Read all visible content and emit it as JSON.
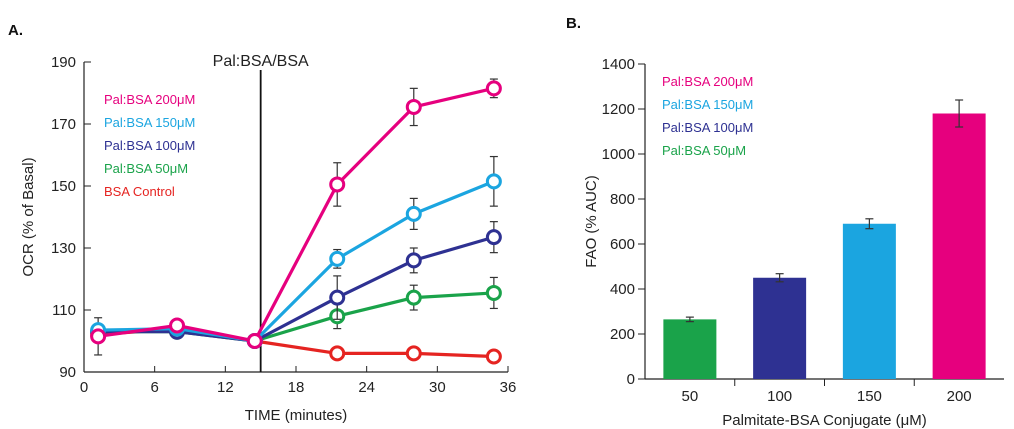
{
  "panels": {
    "a_label": "A.",
    "b_label": "B."
  },
  "chart_data": [
    {
      "type": "line",
      "panel": "A.",
      "xlabel": "TIME (minutes)",
      "ylabel": "OCR (% of Basal)",
      "xlim": [
        0,
        36
      ],
      "ylim": [
        90,
        190
      ],
      "xticks": [
        0,
        6,
        12,
        18,
        24,
        30,
        36
      ],
      "yticks": [
        90,
        110,
        130,
        150,
        170,
        190
      ],
      "annotation": {
        "label": "Pal:BSA/BSA",
        "x": 15
      },
      "legend_position": "top-left",
      "x": [
        1.2,
        7.9,
        14.5,
        21.5,
        28,
        34.8
      ],
      "series": [
        {
          "name": "Pal:BSA 200μM",
          "color": "#e6007e",
          "values": [
            101.5,
            105,
            100,
            150.5,
            175.5,
            181.5
          ],
          "err": [
            0,
            0,
            0,
            7,
            6,
            3
          ]
        },
        {
          "name": "Pal:BSA 150μM",
          "color": "#1ba5e0",
          "values": [
            103.5,
            104,
            100,
            126.5,
            141,
            151.5
          ],
          "err": [
            0,
            0,
            0,
            3,
            5,
            8
          ]
        },
        {
          "name": "Pal:BSA 100μM",
          "color": "#2e3192",
          "values": [
            103,
            103,
            100,
            114,
            126,
            133.5
          ],
          "err": [
            0,
            0,
            0,
            7,
            4,
            5
          ]
        },
        {
          "name": "Pal:BSA 50μM",
          "color": "#1aa34a",
          "values": [
            103,
            103,
            100,
            108,
            114,
            115.5
          ],
          "err": [
            0,
            0,
            0,
            4,
            4,
            5
          ]
        },
        {
          "name": "BSA Control",
          "color": "#e52421",
          "values": [
            102,
            104,
            100,
            96,
            96,
            95
          ],
          "err": [
            0,
            0,
            0,
            0,
            0,
            2
          ]
        }
      ],
      "extra_err": [
        {
          "x": 1.2,
          "y": 101.5,
          "err": 6
        }
      ]
    },
    {
      "type": "bar",
      "panel": "B.",
      "xlabel": "Palmitate-BSA Conjugate (μM)",
      "ylabel": "FAO (% AUC)",
      "ylim": [
        0,
        1400
      ],
      "yticks": [
        0,
        200,
        400,
        600,
        800,
        1000,
        1200,
        1400
      ],
      "categories": [
        "50",
        "100",
        "150",
        "200"
      ],
      "values": [
        265,
        450,
        690,
        1180
      ],
      "err": [
        10,
        18,
        22,
        60
      ],
      "colors": [
        "#1aa34a",
        "#2e3192",
        "#1ba5e0",
        "#e6007e"
      ],
      "legend_position": "top-left",
      "legend": [
        {
          "name": "Pal:BSA 200μM",
          "color": "#e6007e"
        },
        {
          "name": "Pal:BSA 150μM",
          "color": "#1ba5e0"
        },
        {
          "name": "Pal:BSA 100μM",
          "color": "#2e3192"
        },
        {
          "name": "Pal:BSA 50μM",
          "color": "#1aa34a"
        }
      ]
    }
  ]
}
